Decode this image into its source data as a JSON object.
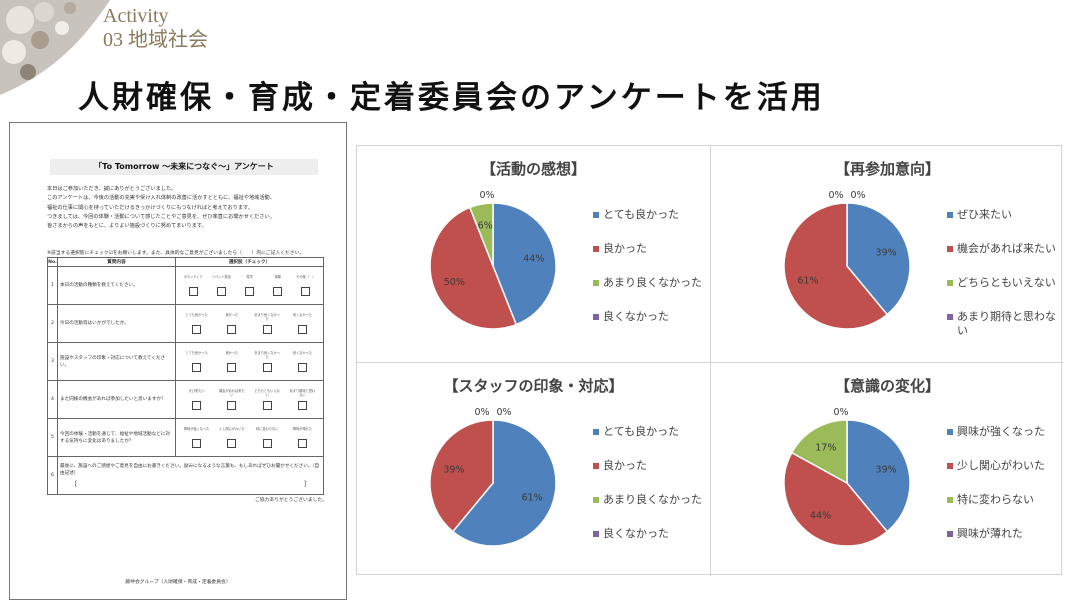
{
  "header": {
    "activity": "Activity",
    "section": "03 地域社会",
    "title": "人財確保・育成・定着委員会のアンケートを活用"
  },
  "document": {
    "title": "「To Tomorrow ～未来につなぐ～」アンケート",
    "intro": [
      "本日はご参加いただき、誠にありがとうございました。",
      "このアンケートは、今後の活動の充実や受け入れ体制の改善に活かすとともに、福祉や地域活動、",
      "福祉の仕事に関心を持っていただけるきっかけづくりにもつなげればと考えております。",
      "つきましては、今回の体験・活動について感じたことやご意見を、ぜひ率直にお聞かせください。",
      "皆さまからの声をもとに、よりよい施設づくりに努めてまいります。"
    ],
    "instruction": "※該当する選択肢にチェック☑をお願いします。また、具体的なご意見がございましたら（　　）内にご記入ください。",
    "col_no": "No.",
    "col_question": "質問内容",
    "col_choices": "選択肢（チェック）",
    "questions": [
      {
        "no": "1",
        "text": "本日の活動の種類を教えてください。",
        "options": [
          "ボランティア",
          "イベント参加",
          "見学",
          "体験",
          "その他（　）"
        ]
      },
      {
        "no": "2",
        "text": "今日の活動等はいかがでしたか。",
        "options": [
          "とても良かった",
          "良かった",
          "あまり良くなかった",
          "良くなかった"
        ]
      },
      {
        "no": "3",
        "text": "施設やスタッフの印象・対応について教えてください。",
        "options": [
          "とても良かった",
          "良かった",
          "あまり良くなかった",
          "良くなかった"
        ]
      },
      {
        "no": "4",
        "text": "また同様の機会があれば参加したいと思いますか？",
        "options": [
          "ぜひ来たい",
          "機会があれば来たい",
          "どちらともいえない",
          "あまり期待と思わない"
        ]
      },
      {
        "no": "5",
        "text": "今回の体験・活動を通じて、福祉や地域活動などに対する気持ちに変化はありましたか？",
        "options": [
          "興味が強くなった",
          "少し関心がわいた",
          "特に変わらない",
          "興味が薄れた"
        ]
      }
    ],
    "q6": {
      "no": "6",
      "text": "最後に、施設へのご感想やご意見を自由にお書きください。励みになるような言葉も、もしあればぜひお聞かせください。（自由記述）",
      "open": "〔",
      "close": "〕"
    },
    "thanks": "ご協力ありがとうございました。",
    "footer": "藤仲会グループ（人財確保・育成・定着委員会）"
  },
  "chart_data": [
    {
      "type": "pie",
      "title": "【活動の感想】",
      "categories": [
        "とても良かった",
        "良かった",
        "あまり良くなかった",
        "良くなかった"
      ],
      "values": [
        44,
        50,
        6,
        0
      ],
      "labels": [
        "44%",
        "50%",
        "6%",
        "0%"
      ],
      "colors": [
        "#4f81bd",
        "#c0504d",
        "#9bbb59",
        "#8064a2"
      ]
    },
    {
      "type": "pie",
      "title": "【再参加意向】",
      "categories": [
        "ぜひ来たい",
        "機会があれば来たい",
        "どちらともいえない",
        "あまり期待と思わない"
      ],
      "values": [
        39,
        61,
        0,
        0
      ],
      "labels": [
        "39%",
        "61%",
        "0%",
        "0%"
      ],
      "colors": [
        "#4f81bd",
        "#c0504d",
        "#9bbb59",
        "#8064a2"
      ]
    },
    {
      "type": "pie",
      "title": "【スタッフの印象・対応】",
      "categories": [
        "とても良かった",
        "良かった",
        "あまり良くなかった",
        "良くなかった"
      ],
      "values": [
        61,
        39,
        0,
        0
      ],
      "labels": [
        "61%",
        "39%",
        "0%",
        "0%"
      ],
      "colors": [
        "#4f81bd",
        "#c0504d",
        "#9bbb59",
        "#8064a2"
      ]
    },
    {
      "type": "pie",
      "title": "【意識の変化】",
      "categories": [
        "興味が強くなった",
        "少し関心がわいた",
        "特に変わらない",
        "興味が薄れた"
      ],
      "values": [
        39,
        44,
        17,
        0
      ],
      "labels": [
        "39%",
        "44%",
        "17%",
        "0%"
      ],
      "colors": [
        "#4f81bd",
        "#c0504d",
        "#9bbb59",
        "#8064a2"
      ]
    }
  ]
}
